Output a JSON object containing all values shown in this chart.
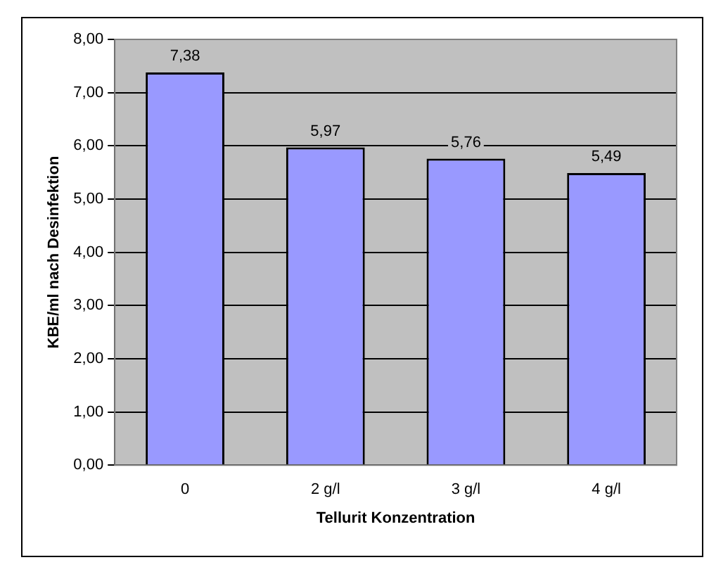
{
  "chart_data": {
    "type": "bar",
    "xlabel": "Tellurit Konzentration",
    "ylabel": "KBE/ml nach Desinfektion",
    "categories": [
      "0",
      "2 g/l",
      "3 g/l",
      "4 g/l"
    ],
    "values": [
      7.38,
      5.97,
      5.76,
      5.49
    ],
    "value_labels": [
      "7,38",
      "5,97",
      "5,76",
      "5,49"
    ],
    "color": "#9999ff",
    "ylim": [
      0,
      8
    ],
    "yticks": [
      {
        "value": 0,
        "label": "0,00"
      },
      {
        "value": 1,
        "label": "1,00"
      },
      {
        "value": 2,
        "label": "2,00"
      },
      {
        "value": 3,
        "label": "3,00"
      },
      {
        "value": 4,
        "label": "4,00"
      },
      {
        "value": 5,
        "label": "5,00"
      },
      {
        "value": 6,
        "label": "6,00"
      },
      {
        "value": 7,
        "label": "7,00"
      },
      {
        "value": 8,
        "label": "8,00"
      }
    ],
    "grid": "y",
    "legend": false
  }
}
